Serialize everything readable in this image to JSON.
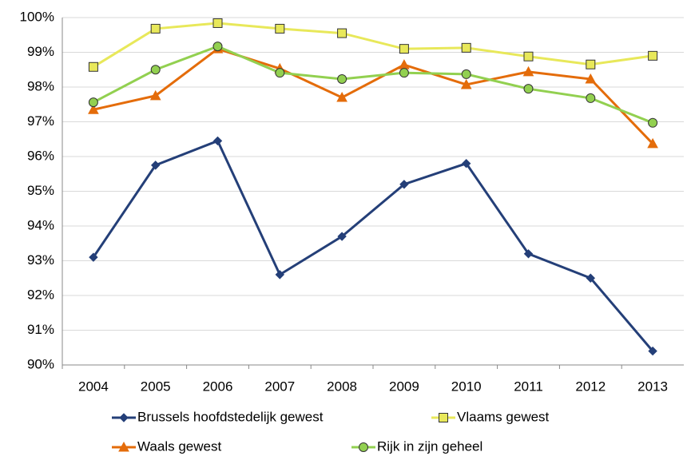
{
  "chart_data": {
    "type": "line",
    "categories": [
      "2004",
      "2005",
      "2006",
      "2007",
      "2008",
      "2009",
      "2010",
      "2011",
      "2012",
      "2013"
    ],
    "series": [
      {
        "name": "Brussels hoofdstedelijk gewest",
        "color": "#243f78",
        "marker": "diamond",
        "values": [
          93.1,
          95.75,
          96.45,
          92.6,
          93.7,
          95.2,
          95.8,
          93.2,
          92.5,
          90.4
        ]
      },
      {
        "name": "Vlaams gewest",
        "color": "#e8e85a",
        "marker": "square",
        "values": [
          98.58,
          99.68,
          99.84,
          99.68,
          99.55,
          99.1,
          99.13,
          98.88,
          98.65,
          98.9
        ]
      },
      {
        "name": "Waals gewest",
        "color": "#e46c0a",
        "marker": "triangle",
        "values": [
          97.35,
          97.75,
          99.1,
          98.53,
          97.7,
          98.64,
          98.07,
          98.44,
          98.23,
          96.37
        ]
      },
      {
        "name": "Rijk in zijn geheel",
        "color": "#92d050",
        "marker": "circle",
        "values": [
          97.56,
          98.5,
          99.17,
          98.41,
          98.23,
          98.41,
          98.37,
          97.95,
          97.68,
          96.97
        ]
      }
    ],
    "ylim": [
      90,
      100
    ],
    "yticks": [
      {
        "value": 90,
        "label": "90%"
      },
      {
        "value": 91,
        "label": "91%"
      },
      {
        "value": 92,
        "label": "92%"
      },
      {
        "value": 93,
        "label": "93%"
      },
      {
        "value": 94,
        "label": "94%"
      },
      {
        "value": 95,
        "label": "95%"
      },
      {
        "value": 96,
        "label": "96%"
      },
      {
        "value": 97,
        "label": "97%"
      },
      {
        "value": 98,
        "label": "98%"
      },
      {
        "value": 99,
        "label": "99%"
      },
      {
        "value": 100,
        "label": "100%"
      }
    ],
    "grid": true
  }
}
